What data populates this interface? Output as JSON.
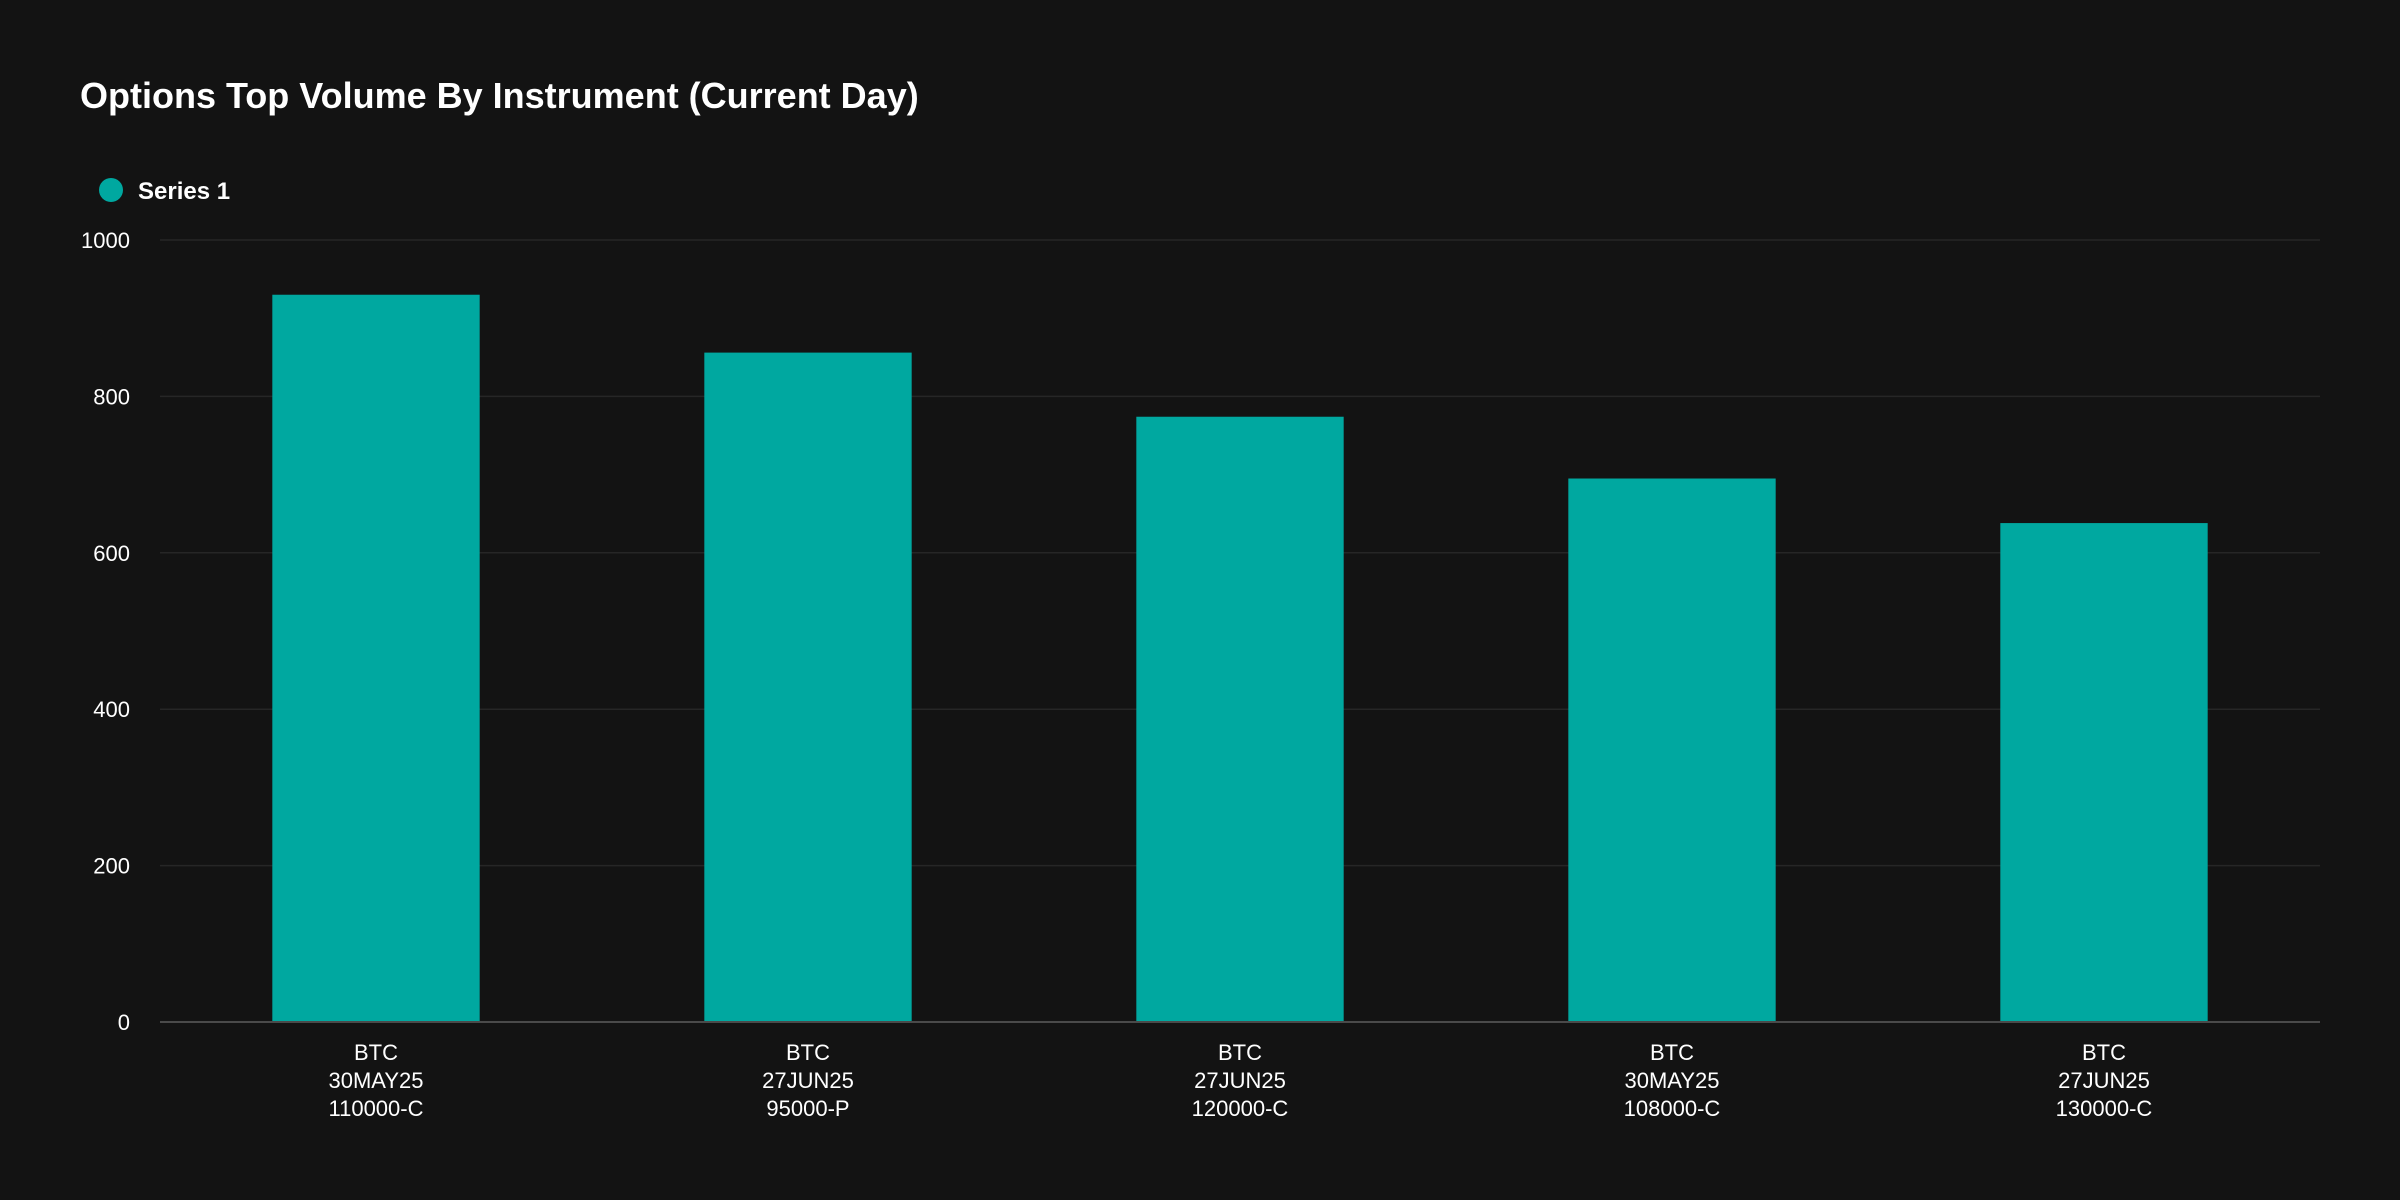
{
  "chart_data": {
    "type": "bar",
    "title": "Options Top Volume By Instrument (Current Day)",
    "xlabel": "",
    "ylabel": "",
    "ylim": [
      0,
      1000
    ],
    "yticks": [
      0,
      200,
      400,
      600,
      800,
      1000
    ],
    "grid": true,
    "legend_position": "top-left",
    "categories": [
      [
        "BTC",
        "30MAY25",
        "110000-C"
      ],
      [
        "BTC",
        "27JUN25",
        "95000-P"
      ],
      [
        "BTC",
        "27JUN25",
        "120000-C"
      ],
      [
        "BTC",
        "30MAY25",
        "108000-C"
      ],
      [
        "BTC",
        "27JUN25",
        "130000-C"
      ]
    ],
    "series": [
      {
        "name": "Series 1",
        "color": "#00a8a0",
        "values": [
          930,
          856,
          774,
          695,
          638
        ]
      }
    ]
  },
  "colors": {
    "background": "#131313",
    "grid": "#262626",
    "axis": "#4a4a4a",
    "text": "#ffffff"
  }
}
